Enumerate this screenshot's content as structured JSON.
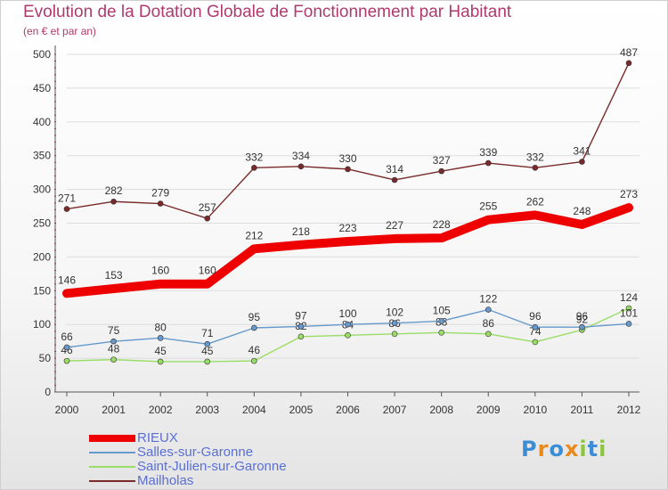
{
  "header": {
    "title": "Evolution de la Dotation Globale de Fonctionnement par Habitant",
    "subtitle": "(en € et par an)"
  },
  "colors": {
    "title": "#b03a6e",
    "legend_text": "#5a6fd6",
    "axis": "#555555",
    "grid": "#dddddd"
  },
  "chart_data": {
    "type": "line",
    "title": "Evolution de la Dotation Globale de Fonctionnement par Habitant",
    "subtitle": "(en € et par an)",
    "x": [
      2000,
      2001,
      2002,
      2003,
      2004,
      2005,
      2006,
      2007,
      2008,
      2009,
      2010,
      2011,
      2012
    ],
    "ylim": [
      0,
      500
    ],
    "yticks": [
      0,
      50,
      100,
      150,
      200,
      250,
      300,
      350,
      400,
      450,
      500
    ],
    "grid": true,
    "legend_position": "bottom-left",
    "series": [
      {
        "name": "RIEUX",
        "color": "#ee0000",
        "values": [
          146,
          153,
          160,
          160,
          212,
          218,
          223,
          227,
          228,
          255,
          262,
          248,
          273
        ]
      },
      {
        "name": "Salles-sur-Garonne",
        "color": "#6699cc",
        "values": [
          66,
          75,
          80,
          71,
          95,
          97,
          100,
          102,
          105,
          122,
          96,
          96,
          101
        ]
      },
      {
        "name": "Saint-Julien-sur-Garonne",
        "color": "#99dd66",
        "values": [
          46,
          48,
          45,
          45,
          46,
          82,
          84,
          86,
          88,
          86,
          74,
          92,
          124
        ]
      },
      {
        "name": "Mailholas",
        "color": "#7a2a2a",
        "values": [
          271,
          282,
          279,
          257,
          332,
          334,
          330,
          314,
          327,
          339,
          332,
          341,
          487
        ]
      }
    ]
  },
  "logo": {
    "letters": [
      {
        "char": "P",
        "color": "#3b8ed6"
      },
      {
        "char": "r",
        "color": "#e98a1c"
      },
      {
        "char": "o",
        "color": "#3b8ed6"
      },
      {
        "char": "x",
        "color": "#e98a1c"
      },
      {
        "char": "i",
        "color": "#8cc63f"
      },
      {
        "char": "t",
        "color": "#3b8ed6"
      },
      {
        "char": "i",
        "color": "#8cc63f"
      }
    ]
  }
}
